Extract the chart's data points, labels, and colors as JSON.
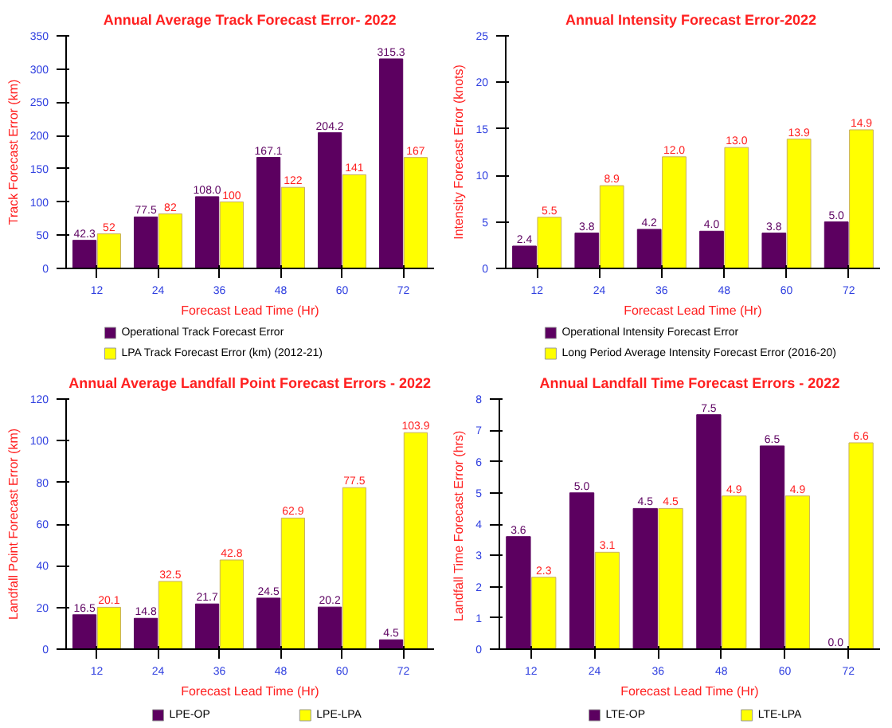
{
  "chart_data": [
    {
      "type": "bar",
      "title": "Annual Average Track Forecast Error- 2022",
      "xlabel": "Forecast Lead Time (Hr)",
      "ylabel": "Track Forecast Error (km)",
      "categories": [
        "12",
        "24",
        "36",
        "48",
        "60",
        "72"
      ],
      "ylim": [
        0,
        350
      ],
      "yticks": [
        0,
        50,
        100,
        150,
        200,
        250,
        300,
        350
      ],
      "grid": false,
      "legend": "bottom",
      "series": [
        {
          "name": "Operational Track Forecast Error",
          "color": "#5c0060",
          "values": [
            42.3,
            77.5,
            108.0,
            167.1,
            204.2,
            315.3
          ],
          "value_labels": [
            "42.3",
            "77.5",
            "108.0",
            "167.1",
            "204.2",
            "315.3"
          ]
        },
        {
          "name": "LPA Track Forecast Error (km) (2012-21)",
          "color": "#ffff00",
          "values": [
            52,
            82,
            100,
            122,
            141,
            167
          ],
          "value_labels": [
            "52",
            "82",
            "100",
            "122",
            "141",
            "167"
          ]
        }
      ]
    },
    {
      "type": "bar",
      "title": "Annual Intensity Forecast  Error-2022",
      "xlabel": "Forecast Lead Time (Hr)",
      "ylabel": "Intensity Forecast Error (knots)",
      "categories": [
        "12",
        "24",
        "36",
        "48",
        "60",
        "72"
      ],
      "ylim": [
        0,
        25
      ],
      "yticks": [
        0,
        5,
        10,
        15,
        20,
        25
      ],
      "grid": false,
      "legend": "bottom",
      "series": [
        {
          "name": "Operational Intensity Forecast Error",
          "color": "#5c0060",
          "values": [
            2.4,
            3.8,
            4.2,
            4.0,
            3.8,
            5.0
          ],
          "value_labels": [
            "2.4",
            "3.8",
            "4.2",
            "4.0",
            "3.8",
            "5.0"
          ]
        },
        {
          "name": "Long Period Average Intensity Forecast Error (2016-20)",
          "color": "#ffff00",
          "values": [
            5.5,
            8.9,
            12.0,
            13.0,
            13.9,
            14.9
          ],
          "value_labels": [
            "5.5",
            "8.9",
            "12.0",
            "13.0",
            "13.9",
            "14.9"
          ]
        }
      ]
    },
    {
      "type": "bar",
      "title": "Annual Average Landfall Point Forecast Errors - 2022",
      "xlabel": "Forecast Lead Time (Hr)",
      "ylabel": "Landfall Point Forecast Error (km)",
      "categories": [
        "12",
        "24",
        "36",
        "48",
        "60",
        "72"
      ],
      "ylim": [
        0,
        120
      ],
      "yticks": [
        0,
        20,
        40,
        60,
        80,
        100,
        120
      ],
      "grid": false,
      "legend": "bottom",
      "series": [
        {
          "name": "LPE-OP",
          "color": "#5c0060",
          "values": [
            16.5,
            14.8,
            21.7,
            24.5,
            20.2,
            4.5
          ],
          "value_labels": [
            "16.5",
            "14.8",
            "21.7",
            "24.5",
            "20.2",
            "4.5"
          ]
        },
        {
          "name": "LPE-LPA",
          "color": "#ffff00",
          "values": [
            20.1,
            32.5,
            42.8,
            62.9,
            77.5,
            103.9
          ],
          "value_labels": [
            "20.1",
            "32.5",
            "42.8",
            "62.9",
            "77.5",
            "103.9"
          ]
        }
      ]
    },
    {
      "type": "bar",
      "title": "Annual Landfall Time Forecast Errors - 2022",
      "xlabel": "Forecast Lead Time (Hr)",
      "ylabel": "Landfall  Time Forecast Error (hrs)",
      "categories": [
        "12",
        "24",
        "36",
        "48",
        "60",
        "72"
      ],
      "ylim": [
        0,
        8
      ],
      "yticks": [
        0,
        1,
        2,
        3,
        4,
        5,
        6,
        7,
        8
      ],
      "grid": false,
      "legend": "bottom",
      "series": [
        {
          "name": "LTE-OP",
          "color": "#5c0060",
          "values": [
            3.6,
            5.0,
            4.5,
            7.5,
            6.5,
            0.0
          ],
          "value_labels": [
            "3.6",
            "5.0",
            "4.5",
            "7.5",
            "6.5",
            "0.0"
          ]
        },
        {
          "name": "LTE-LPA",
          "color": "#ffff00",
          "values": [
            2.3,
            3.1,
            4.5,
            4.9,
            4.9,
            6.6
          ],
          "value_labels": [
            "2.3",
            "3.1",
            "4.5",
            "4.9",
            "4.9",
            "6.6"
          ]
        }
      ]
    }
  ]
}
